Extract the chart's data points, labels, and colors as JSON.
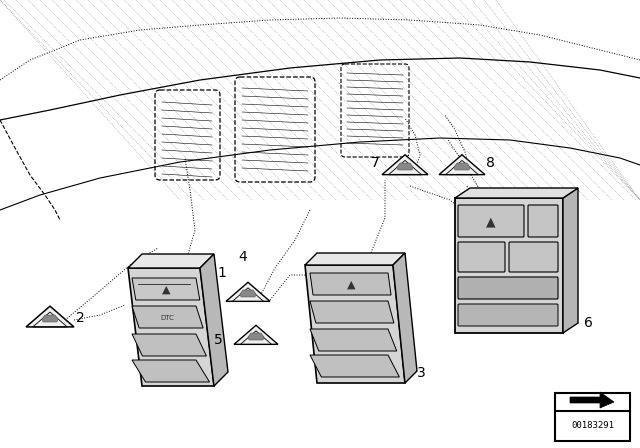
{
  "bg_color": "#ffffff",
  "line_color": "#000000",
  "diagram_number": "00183291",
  "figsize": [
    6.4,
    4.48
  ],
  "dpi": 100
}
